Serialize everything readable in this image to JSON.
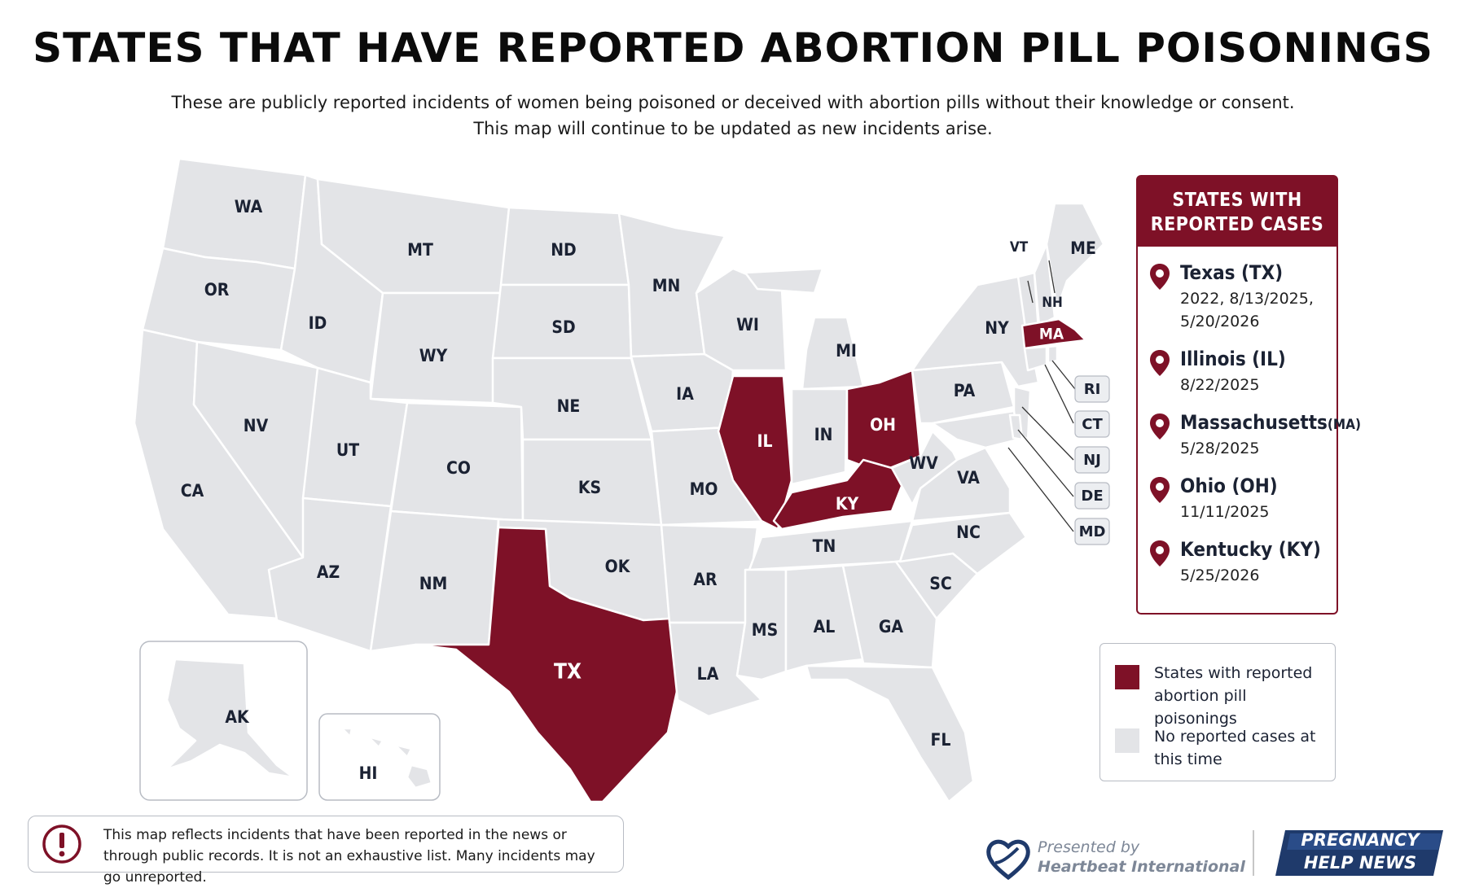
{
  "title": "STATES THAT HAVE REPORTED ABORTION PILL POISONINGS",
  "subtitle_line1": "These are publicly reported incidents of women being poisoned or deceived with abortion pills without their knowledge or consent.",
  "subtitle_line2": "This map will continue to be updated as new incidents arise.",
  "colors": {
    "reported": "#7e1127",
    "not_reported": "#e3e4e7"
  },
  "map": {
    "labels": {
      "WA": "WA",
      "OR": "OR",
      "CA": "CA",
      "NV": "NV",
      "ID": "ID",
      "MT": "MT",
      "WY": "WY",
      "UT": "UT",
      "AZ": "AZ",
      "CO": "CO",
      "NM": "NM",
      "ND": "ND",
      "SD": "SD",
      "NE": "NE",
      "KS": "KS",
      "OK": "OK",
      "TX": "TX",
      "MN": "MN",
      "IA": "IA",
      "MO": "MO",
      "AR": "AR",
      "LA": "LA",
      "WI": "WI",
      "IL": "IL",
      "MI": "MI",
      "IN": "IN",
      "OH": "OH",
      "KY": "KY",
      "TN": "TN",
      "MS": "MS",
      "AL": "AL",
      "GA": "GA",
      "FL": "FL",
      "SC": "SC",
      "NC": "NC",
      "VA": "VA",
      "WV": "WV",
      "PA": "PA",
      "NY": "NY",
      "VT": "VT",
      "NH": "NH",
      "ME": "ME",
      "MA": "MA",
      "AK": "AK",
      "HI": "HI",
      "RI": "RI",
      "CT": "CT",
      "NJ": "NJ",
      "DE": "DE",
      "MD": "MD"
    },
    "reported_states": [
      "TX",
      "IL",
      "OH",
      "KY",
      "MA"
    ]
  },
  "panel": {
    "heading_line1": "STATES WITH",
    "heading_line2": "REPORTED CASES",
    "cases": [
      {
        "name": "Texas (TX)",
        "dates": "2022, 8/13/2025, 5/20/2026"
      },
      {
        "name": "Illinois (IL)",
        "dates": "8/22/2025"
      },
      {
        "name": "Massachusetts",
        "abbr": "(MA)",
        "dates": "5/28/2025"
      },
      {
        "name": "Ohio (OH)",
        "dates": "11/11/2025"
      },
      {
        "name": "Kentucky (KY)",
        "dates": "5/25/2026"
      }
    ],
    "pin_icon": "map-pin-icon"
  },
  "legend": {
    "reported_label": "States with reported abortion pill poisonings",
    "none_label": "No reported cases at this time"
  },
  "note": {
    "text": "This map reflects incidents that have been reported in the news or through public records. It is not an exhaustive list. Many incidents may go unreported.",
    "icon": "alert-circle-icon"
  },
  "footer": {
    "presented_by": "Presented by",
    "organization": "Heartbeat International",
    "brand_line1": "PREGNANCY",
    "brand_line2": "HELP NEWS"
  }
}
